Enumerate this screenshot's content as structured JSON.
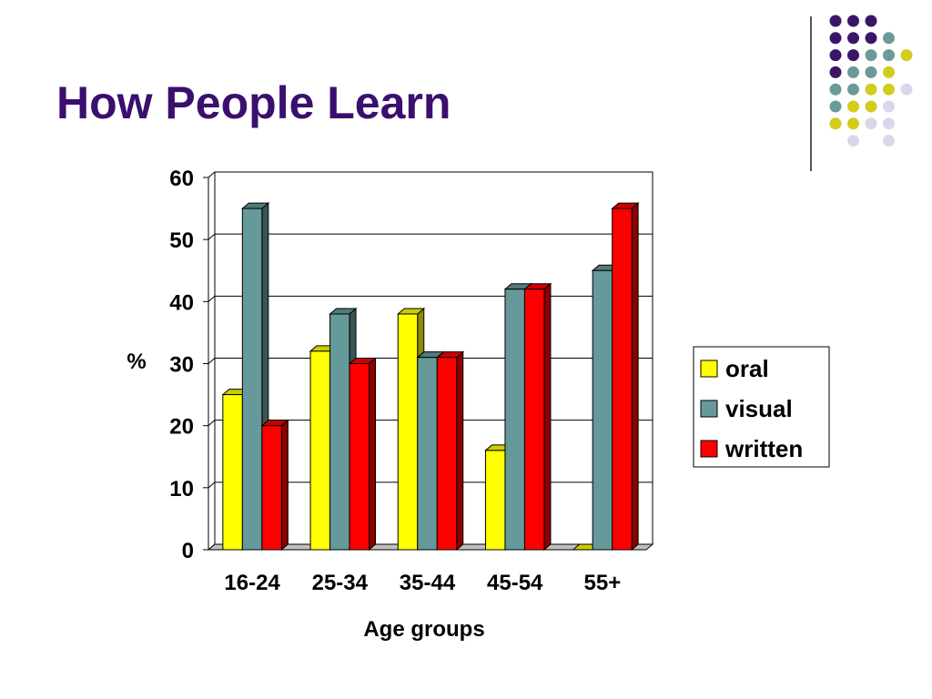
{
  "slide": {
    "title": "How People Learn"
  },
  "decor": {
    "dot_colors": {
      "P": "#3b1668",
      "T": "#6b9a9a",
      "Y": "#d4cc1a",
      "L": "#d9d8ea"
    },
    "dot_grid": [
      "PPP..",
      "PPPT.",
      "PPTTY",
      "PTTY.",
      "TTYYL",
      "TYYL.",
      "YYLL.",
      ".L.L."
    ]
  },
  "chart_data": {
    "type": "bar",
    "title": "",
    "xlabel": "Age groups",
    "ylabel": "%",
    "ylim": [
      0,
      60
    ],
    "yticks": [
      0,
      10,
      20,
      30,
      40,
      50,
      60
    ],
    "grid": true,
    "legend_position": "right",
    "categories": [
      "16-24",
      "25-34",
      "35-44",
      "45-54",
      "55+"
    ],
    "series": [
      {
        "name": "oral",
        "color": "#ffff00",
        "values": [
          25,
          32,
          38,
          16,
          0
        ]
      },
      {
        "name": "visual",
        "color": "#669999",
        "values": [
          55,
          38,
          31,
          42,
          45
        ]
      },
      {
        "name": "written",
        "color": "#ff0000",
        "values": [
          20,
          30,
          31,
          42,
          55
        ]
      }
    ]
  }
}
